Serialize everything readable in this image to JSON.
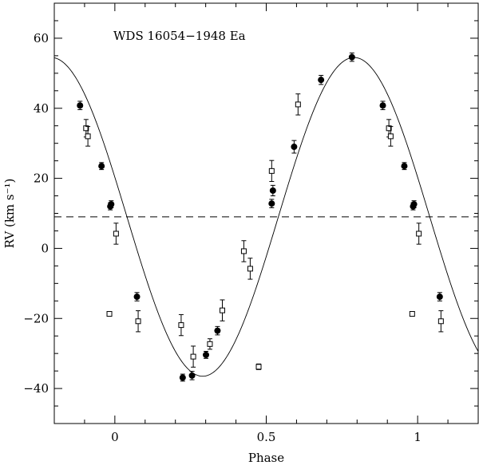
{
  "chart_data": {
    "type": "scatter",
    "title": "WDS 16054−1948 Ea",
    "xlabel": "Phase",
    "ylabel": "RV (km s⁻¹)",
    "xlim": [
      -0.2,
      1.2
    ],
    "ylim": [
      -50,
      70
    ],
    "x_ticks": [
      0,
      0.5,
      1
    ],
    "x_tick_labels": [
      "0",
      "0.5",
      "1"
    ],
    "y_ticks": [
      -40,
      -20,
      0,
      20,
      40,
      60
    ],
    "y_tick_labels": [
      "−40",
      "−20",
      "0",
      "20",
      "40",
      "60"
    ],
    "grid": false,
    "systemic_velocity": 9,
    "model_curve": {
      "gamma": 9,
      "K": 45.5,
      "max_phase": 0.79
    },
    "series": [
      {
        "marker": "filled-circle",
        "points": [
          {
            "x": -0.115,
            "y": 40.8,
            "err": 1.2
          },
          {
            "x": -0.044,
            "y": 23.5,
            "err": 1.0
          },
          {
            "x": -0.015,
            "y": 12.0,
            "err": 1.0
          },
          {
            "x": -0.012,
            "y": 12.6,
            "err": 1.0
          },
          {
            "x": 0.073,
            "y": -13.8,
            "err": 1.2
          },
          {
            "x": 0.224,
            "y": -36.9,
            "err": 1.0
          },
          {
            "x": 0.255,
            "y": -36.3,
            "err": 1.2
          },
          {
            "x": 0.301,
            "y": -30.4,
            "err": 1.0
          },
          {
            "x": 0.339,
            "y": -23.5,
            "err": 1.2
          },
          {
            "x": 0.518,
            "y": 12.8,
            "err": 1.2
          },
          {
            "x": 0.522,
            "y": 16.5,
            "err": 1.5
          },
          {
            "x": 0.592,
            "y": 29.0,
            "err": 1.8
          },
          {
            "x": 0.681,
            "y": 48.1,
            "err": 1.3
          },
          {
            "x": 0.783,
            "y": 54.6,
            "err": 1.2
          },
          {
            "x": 0.885,
            "y": 40.8,
            "err": 1.2
          },
          {
            "x": 0.956,
            "y": 23.5,
            "err": 1.0
          },
          {
            "x": 0.985,
            "y": 12.0,
            "err": 1.0
          },
          {
            "x": 0.988,
            "y": 12.6,
            "err": 1.0
          },
          {
            "x": 1.073,
            "y": -13.8,
            "err": 1.2
          }
        ]
      },
      {
        "marker": "open-square",
        "points": [
          {
            "x": -0.095,
            "y": 34.3,
            "err": 2.5
          },
          {
            "x": -0.089,
            "y": 32.0,
            "err": 2.8
          },
          {
            "x": -0.018,
            "y": -18.7,
            "err": 0.6
          },
          {
            "x": 0.004,
            "y": 4.2,
            "err": 3.0
          },
          {
            "x": 0.077,
            "y": -20.8,
            "err": 3.0
          },
          {
            "x": 0.219,
            "y": -21.9,
            "err": 3.0
          },
          {
            "x": 0.259,
            "y": -30.9,
            "err": 3.0
          },
          {
            "x": 0.314,
            "y": -27.3,
            "err": 1.5
          },
          {
            "x": 0.355,
            "y": -17.7,
            "err": 3.0
          },
          {
            "x": 0.426,
            "y": -0.8,
            "err": 3.0
          },
          {
            "x": 0.447,
            "y": -5.8,
            "err": 3.0
          },
          {
            "x": 0.475,
            "y": -33.8,
            "err": 0.8
          },
          {
            "x": 0.518,
            "y": 22.1,
            "err": 3.0
          },
          {
            "x": 0.605,
            "y": 41.1,
            "err": 3.0
          },
          {
            "x": 0.905,
            "y": 34.3,
            "err": 2.5
          },
          {
            "x": 0.911,
            "y": 32.0,
            "err": 2.8
          },
          {
            "x": 0.982,
            "y": -18.7,
            "err": 0.6
          },
          {
            "x": 1.004,
            "y": 4.2,
            "err": 3.0
          },
          {
            "x": 1.077,
            "y": -20.8,
            "err": 3.0
          }
        ]
      }
    ]
  }
}
